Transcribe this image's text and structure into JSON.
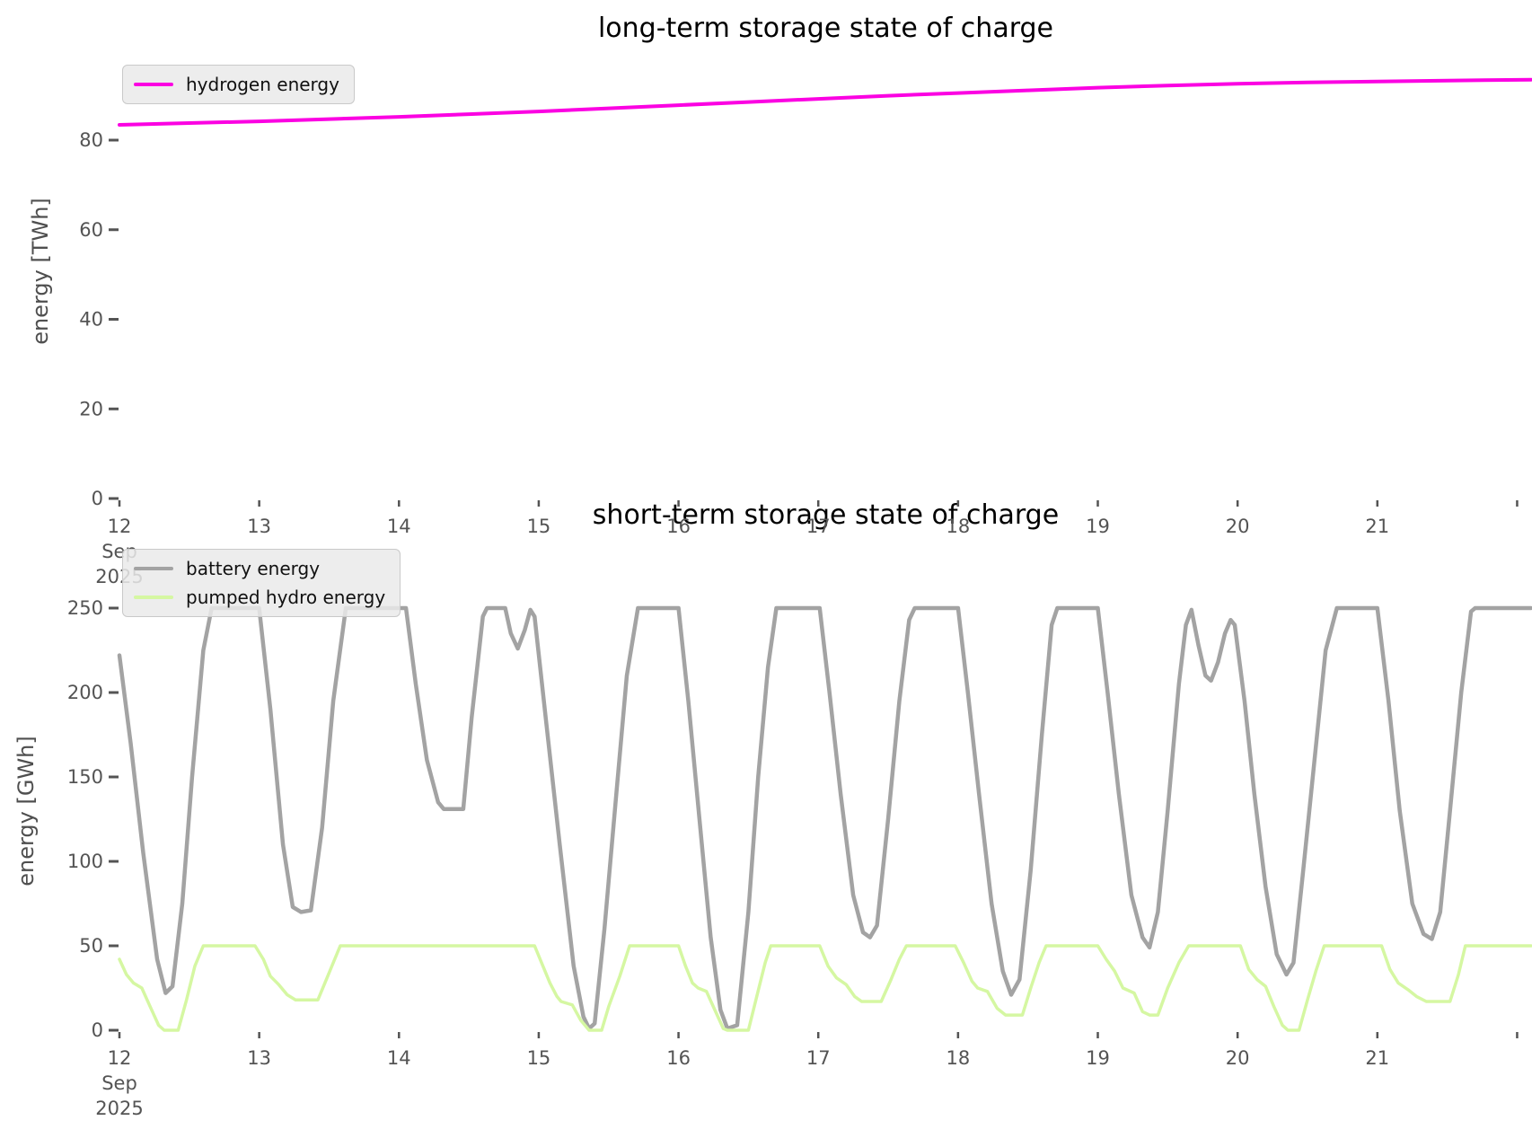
{
  "style": {
    "tick_text_color": "#545454",
    "axis_label_color": "#4f4f4f",
    "title_color": "#000000",
    "legend_background": "#eaeaea",
    "legend_border": "#c9c9c9",
    "legend_text_color": "#111111",
    "background": "#ffffff"
  },
  "chart_data": [
    {
      "type": "line",
      "title": "long-term storage state of charge",
      "xlabel": "",
      "ylabel": "energy [TWh]",
      "grid": false,
      "legend_position": "upper left",
      "x_axis": {
        "xlim": [
          12,
          22.1
        ],
        "tick_days": [
          12,
          13,
          14,
          15,
          16,
          17,
          18,
          19,
          20,
          21,
          22
        ],
        "tick_labels": [
          "12",
          "13",
          "14",
          "15",
          "16",
          "17",
          "18",
          "19",
          "20",
          "21",
          ""
        ],
        "sub_label_day": 12,
        "sub_labels": [
          "Sep",
          "2025"
        ]
      },
      "y_axis": {
        "ylim": [
          0,
          97.5
        ],
        "ticks": [
          0,
          20,
          40,
          60,
          80
        ]
      },
      "series": [
        {
          "name": "hydrogen energy",
          "color": "#fb00e2",
          "width": 4,
          "unit": "TWh",
          "points": [
            [
              12.0,
              83.4
            ],
            [
              12.5,
              83.8
            ],
            [
              13.0,
              84.2
            ],
            [
              13.5,
              84.7
            ],
            [
              14.0,
              85.2
            ],
            [
              14.5,
              85.8
            ],
            [
              15.0,
              86.4
            ],
            [
              15.5,
              87.1
            ],
            [
              16.0,
              87.8
            ],
            [
              16.5,
              88.5
            ],
            [
              17.0,
              89.2
            ],
            [
              17.5,
              89.9
            ],
            [
              18.0,
              90.5
            ],
            [
              18.5,
              91.1
            ],
            [
              19.0,
              91.7
            ],
            [
              19.5,
              92.2
            ],
            [
              20.0,
              92.6
            ],
            [
              20.5,
              92.9
            ],
            [
              21.0,
              93.1
            ],
            [
              21.5,
              93.3
            ],
            [
              22.1,
              93.5
            ]
          ]
        }
      ]
    },
    {
      "type": "line",
      "title": "short-term storage state of charge",
      "xlabel": "",
      "ylabel": "energy [GWh]",
      "grid": false,
      "legend_position": "upper left",
      "x_axis": {
        "xlim": [
          12,
          22.1
        ],
        "tick_days": [
          12,
          13,
          14,
          15,
          16,
          17,
          18,
          19,
          20,
          21,
          22
        ],
        "tick_labels": [
          "12",
          "13",
          "14",
          "15",
          "16",
          "17",
          "18",
          "19",
          "20",
          "21",
          ""
        ],
        "sub_label_day": 12,
        "sub_labels": [
          "Sep",
          "2025"
        ]
      },
      "y_axis": {
        "ylim": [
          0,
          250
        ],
        "ticks": [
          0,
          50,
          100,
          150,
          200,
          250
        ]
      },
      "series": [
        {
          "name": "battery energy",
          "color": "#a3a3a3",
          "width": 4.5,
          "unit": "GWh",
          "points": [
            [
              12.0,
              222
            ],
            [
              12.08,
              170
            ],
            [
              12.17,
              105
            ],
            [
              12.27,
              42
            ],
            [
              12.33,
              22
            ],
            [
              12.38,
              26
            ],
            [
              12.45,
              75
            ],
            [
              12.52,
              150
            ],
            [
              12.6,
              225
            ],
            [
              12.66,
              250
            ],
            [
              13.0,
              250
            ],
            [
              13.08,
              190
            ],
            [
              13.17,
              110
            ],
            [
              13.24,
              73
            ],
            [
              13.3,
              70
            ],
            [
              13.37,
              71
            ],
            [
              13.45,
              120
            ],
            [
              13.53,
              195
            ],
            [
              13.62,
              250
            ],
            [
              14.05,
              250
            ],
            [
              14.12,
              205
            ],
            [
              14.2,
              160
            ],
            [
              14.28,
              135
            ],
            [
              14.32,
              131
            ],
            [
              14.46,
              131
            ],
            [
              14.52,
              185
            ],
            [
              14.6,
              245
            ],
            [
              14.63,
              250
            ],
            [
              14.76,
              250
            ],
            [
              14.8,
              235
            ],
            [
              14.85,
              226
            ],
            [
              14.9,
              237
            ],
            [
              14.94,
              249
            ],
            [
              14.97,
              245
            ],
            [
              15.05,
              185
            ],
            [
              15.15,
              110
            ],
            [
              15.25,
              38
            ],
            [
              15.32,
              8
            ],
            [
              15.36,
              1
            ],
            [
              15.4,
              4
            ],
            [
              15.47,
              60
            ],
            [
              15.55,
              135
            ],
            [
              15.63,
              210
            ],
            [
              15.71,
              250
            ],
            [
              16.0,
              250
            ],
            [
              16.07,
              195
            ],
            [
              16.15,
              125
            ],
            [
              16.23,
              55
            ],
            [
              16.3,
              12
            ],
            [
              16.35,
              1
            ],
            [
              16.42,
              3
            ],
            [
              16.5,
              70
            ],
            [
              16.57,
              150
            ],
            [
              16.64,
              215
            ],
            [
              16.7,
              250
            ],
            [
              17.01,
              250
            ],
            [
              17.08,
              200
            ],
            [
              17.16,
              140
            ],
            [
              17.25,
              80
            ],
            [
              17.32,
              58
            ],
            [
              17.37,
              55
            ],
            [
              17.42,
              62
            ],
            [
              17.5,
              125
            ],
            [
              17.58,
              195
            ],
            [
              17.65,
              243
            ],
            [
              17.69,
              250
            ],
            [
              18.0,
              250
            ],
            [
              18.07,
              200
            ],
            [
              18.15,
              140
            ],
            [
              18.24,
              75
            ],
            [
              18.32,
              35
            ],
            [
              18.38,
              21
            ],
            [
              18.44,
              30
            ],
            [
              18.52,
              95
            ],
            [
              18.6,
              175
            ],
            [
              18.67,
              240
            ],
            [
              18.71,
              250
            ],
            [
              19.0,
              250
            ],
            [
              19.07,
              200
            ],
            [
              19.15,
              140
            ],
            [
              19.24,
              80
            ],
            [
              19.32,
              55
            ],
            [
              19.37,
              49
            ],
            [
              19.43,
              70
            ],
            [
              19.5,
              130
            ],
            [
              19.58,
              205
            ],
            [
              19.63,
              240
            ],
            [
              19.67,
              249
            ],
            [
              19.72,
              228
            ],
            [
              19.77,
              210
            ],
            [
              19.81,
              207
            ],
            [
              19.86,
              218
            ],
            [
              19.91,
              235
            ],
            [
              19.95,
              243
            ],
            [
              19.98,
              240
            ],
            [
              20.05,
              195
            ],
            [
              20.12,
              140
            ],
            [
              20.2,
              85
            ],
            [
              20.28,
              45
            ],
            [
              20.35,
              33
            ],
            [
              20.4,
              40
            ],
            [
              20.47,
              95
            ],
            [
              20.55,
              160
            ],
            [
              20.63,
              225
            ],
            [
              20.71,
              250
            ],
            [
              21.0,
              250
            ],
            [
              21.08,
              195
            ],
            [
              21.16,
              130
            ],
            [
              21.25,
              75
            ],
            [
              21.33,
              57
            ],
            [
              21.39,
              54
            ],
            [
              21.45,
              70
            ],
            [
              21.52,
              130
            ],
            [
              21.6,
              200
            ],
            [
              21.67,
              248
            ],
            [
              21.7,
              250
            ],
            [
              22.1,
              250
            ]
          ]
        },
        {
          "name": "pumped hydro energy",
          "color": "#d5f7a2",
          "width": 3.5,
          "unit": "GWh",
          "points": [
            [
              12.0,
              42
            ],
            [
              12.05,
              33
            ],
            [
              12.1,
              28
            ],
            [
              12.16,
              25
            ],
            [
              12.22,
              14
            ],
            [
              12.28,
              3
            ],
            [
              12.32,
              0
            ],
            [
              12.42,
              0
            ],
            [
              12.48,
              18
            ],
            [
              12.54,
              38
            ],
            [
              12.6,
              50
            ],
            [
              12.97,
              50
            ],
            [
              13.03,
              42
            ],
            [
              13.08,
              32
            ],
            [
              13.14,
              27
            ],
            [
              13.2,
              21
            ],
            [
              13.26,
              18
            ],
            [
              13.42,
              18
            ],
            [
              13.48,
              30
            ],
            [
              13.54,
              42
            ],
            [
              13.58,
              50
            ],
            [
              14.97,
              50
            ],
            [
              15.03,
              38
            ],
            [
              15.08,
              28
            ],
            [
              15.13,
              20
            ],
            [
              15.16,
              17
            ],
            [
              15.24,
              15
            ],
            [
              15.3,
              6
            ],
            [
              15.36,
              0
            ],
            [
              15.45,
              0
            ],
            [
              15.5,
              14
            ],
            [
              15.58,
              32
            ],
            [
              15.65,
              50
            ],
            [
              16.0,
              50
            ],
            [
              16.05,
              38
            ],
            [
              16.1,
              28
            ],
            [
              16.14,
              25
            ],
            [
              16.2,
              23
            ],
            [
              16.26,
              12
            ],
            [
              16.32,
              1
            ],
            [
              16.35,
              0
            ],
            [
              16.5,
              0
            ],
            [
              16.56,
              20
            ],
            [
              16.62,
              40
            ],
            [
              16.66,
              50
            ],
            [
              17.01,
              50
            ],
            [
              17.07,
              38
            ],
            [
              17.13,
              31
            ],
            [
              17.2,
              27
            ],
            [
              17.26,
              20
            ],
            [
              17.31,
              17
            ],
            [
              17.45,
              17
            ],
            [
              17.52,
              30
            ],
            [
              17.58,
              42
            ],
            [
              17.63,
              50
            ],
            [
              17.98,
              50
            ],
            [
              18.04,
              40
            ],
            [
              18.1,
              29
            ],
            [
              18.14,
              25
            ],
            [
              18.21,
              23
            ],
            [
              18.28,
              13
            ],
            [
              18.34,
              9
            ],
            [
              18.46,
              9
            ],
            [
              18.52,
              25
            ],
            [
              18.58,
              40
            ],
            [
              18.63,
              50
            ],
            [
              19.0,
              50
            ],
            [
              19.06,
              42
            ],
            [
              19.12,
              35
            ],
            [
              19.18,
              25
            ],
            [
              19.26,
              22
            ],
            [
              19.32,
              11
            ],
            [
              19.37,
              9
            ],
            [
              19.43,
              9
            ],
            [
              19.5,
              25
            ],
            [
              19.58,
              40
            ],
            [
              19.65,
              50
            ],
            [
              20.02,
              50
            ],
            [
              20.08,
              36
            ],
            [
              20.14,
              30
            ],
            [
              20.2,
              26
            ],
            [
              20.26,
              14
            ],
            [
              20.32,
              3
            ],
            [
              20.36,
              0
            ],
            [
              20.44,
              0
            ],
            [
              20.5,
              18
            ],
            [
              20.56,
              35
            ],
            [
              20.62,
              50
            ],
            [
              21.03,
              50
            ],
            [
              21.09,
              36
            ],
            [
              21.15,
              28
            ],
            [
              21.22,
              24
            ],
            [
              21.28,
              20
            ],
            [
              21.35,
              17
            ],
            [
              21.52,
              17
            ],
            [
              21.58,
              33
            ],
            [
              21.63,
              50
            ],
            [
              22.1,
              50
            ]
          ]
        }
      ]
    }
  ]
}
